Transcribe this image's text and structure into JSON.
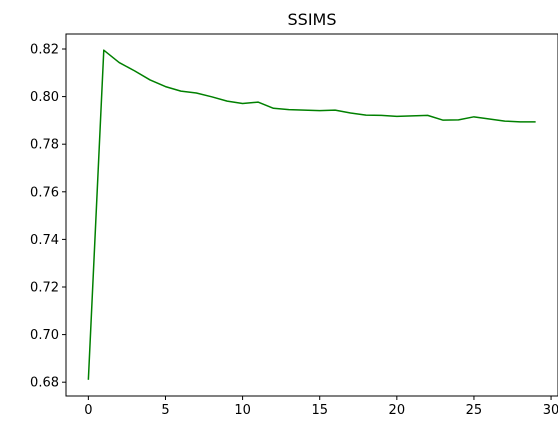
{
  "chart_data": {
    "type": "line",
    "title": "SSIMS",
    "xlabel": "",
    "ylabel": "",
    "xlim": [
      -1.45,
      30.45
    ],
    "ylim": [
      0.6742,
      0.8263
    ],
    "x_ticks": [
      0,
      5,
      10,
      15,
      20,
      25,
      30
    ],
    "x_tick_labels": [
      "0",
      "5",
      "10",
      "15",
      "20",
      "25",
      "30"
    ],
    "y_ticks": [
      0.68,
      0.7,
      0.72,
      0.74,
      0.76,
      0.78,
      0.8,
      0.82
    ],
    "y_tick_labels": [
      "0.68",
      "0.70",
      "0.72",
      "0.74",
      "0.76",
      "0.78",
      "0.80",
      "0.82"
    ],
    "grid": false,
    "series": [
      {
        "color": "#008000",
        "x": [
          0,
          1,
          2,
          3,
          4,
          5,
          6,
          7,
          8,
          9,
          10,
          11,
          12,
          13,
          14,
          15,
          16,
          17,
          18,
          19,
          20,
          21,
          22,
          23,
          24,
          25,
          26,
          27,
          28,
          29
        ],
        "y": [
          0.681,
          0.8195,
          0.8143,
          0.8108,
          0.807,
          0.8042,
          0.8023,
          0.8015,
          0.7999,
          0.7981,
          0.7971,
          0.7977,
          0.7951,
          0.7945,
          0.7943,
          0.7941,
          0.7943,
          0.7931,
          0.7922,
          0.7921,
          0.7917,
          0.7919,
          0.7921,
          0.7901,
          0.7902,
          0.7915,
          0.7906,
          0.7897,
          0.7894,
          0.7894
        ]
      }
    ]
  }
}
